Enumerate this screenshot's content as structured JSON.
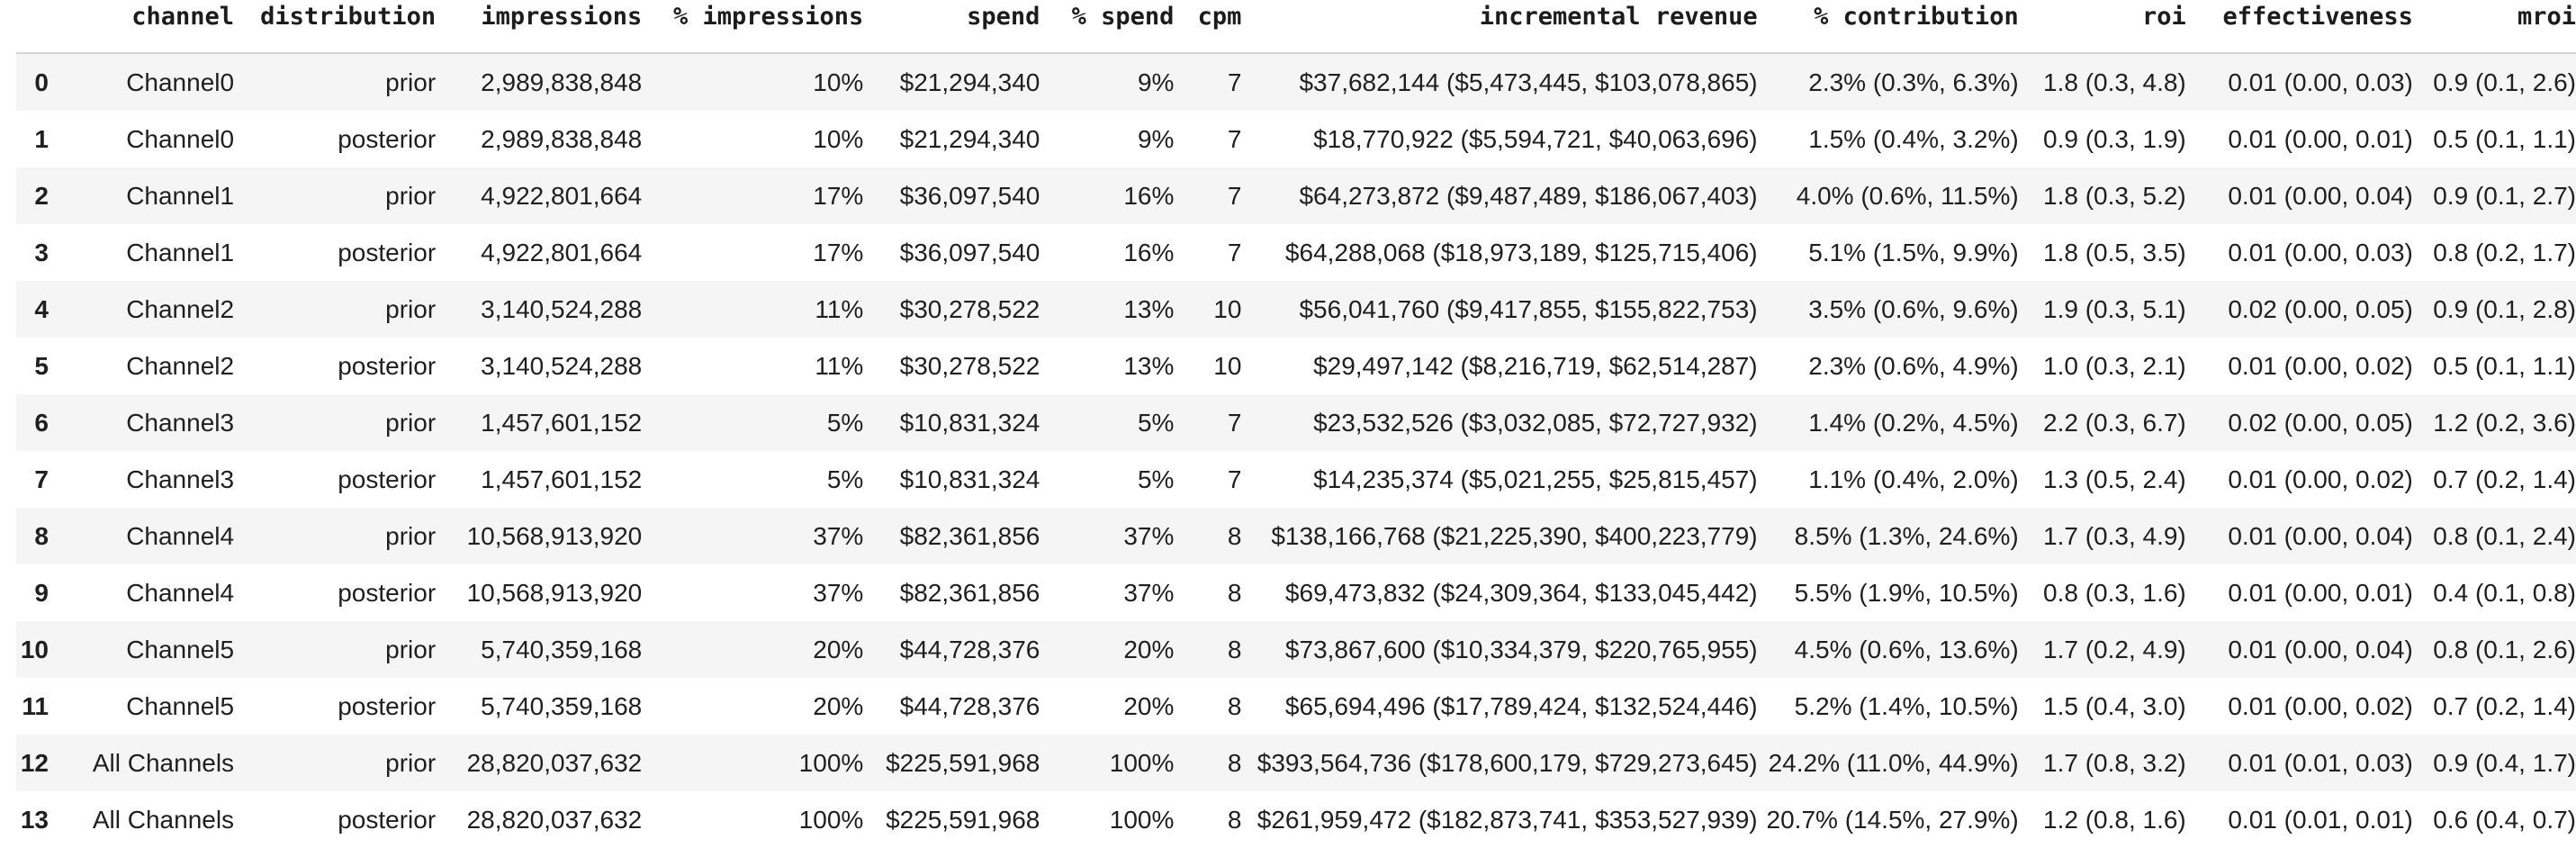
{
  "colors": {
    "row_stripe": "#f5f5f5",
    "header_border": "#d4d4d4",
    "text": "#1f1f1f",
    "background": "#ffffff"
  },
  "chart_data": {
    "type": "table",
    "columns": [
      "",
      "channel",
      "distribution",
      "impressions",
      "% impressions",
      "spend",
      "% spend",
      "cpm",
      "incremental revenue",
      "% contribution",
      "roi",
      "effectiveness",
      "mroi"
    ],
    "rows": [
      [
        "0",
        "Channel0",
        "prior",
        "2,989,838,848",
        "10%",
        "$21,294,340",
        "9%",
        "7",
        "$37,682,144 ($5,473,445, $103,078,865)",
        "2.3% (0.3%, 6.3%)",
        "1.8 (0.3, 4.8)",
        "0.01 (0.00, 0.03)",
        "0.9 (0.1, 2.6)"
      ],
      [
        "1",
        "Channel0",
        "posterior",
        "2,989,838,848",
        "10%",
        "$21,294,340",
        "9%",
        "7",
        "$18,770,922 ($5,594,721, $40,063,696)",
        "1.5% (0.4%, 3.2%)",
        "0.9 (0.3, 1.9)",
        "0.01 (0.00, 0.01)",
        "0.5 (0.1, 1.1)"
      ],
      [
        "2",
        "Channel1",
        "prior",
        "4,922,801,664",
        "17%",
        "$36,097,540",
        "16%",
        "7",
        "$64,273,872 ($9,487,489, $186,067,403)",
        "4.0% (0.6%, 11.5%)",
        "1.8 (0.3, 5.2)",
        "0.01 (0.00, 0.04)",
        "0.9 (0.1, 2.7)"
      ],
      [
        "3",
        "Channel1",
        "posterior",
        "4,922,801,664",
        "17%",
        "$36,097,540",
        "16%",
        "7",
        "$64,288,068 ($18,973,189, $125,715,406)",
        "5.1% (1.5%, 9.9%)",
        "1.8 (0.5, 3.5)",
        "0.01 (0.00, 0.03)",
        "0.8 (0.2, 1.7)"
      ],
      [
        "4",
        "Channel2",
        "prior",
        "3,140,524,288",
        "11%",
        "$30,278,522",
        "13%",
        "10",
        "$56,041,760 ($9,417,855, $155,822,753)",
        "3.5% (0.6%, 9.6%)",
        "1.9 (0.3, 5.1)",
        "0.02 (0.00, 0.05)",
        "0.9 (0.1, 2.8)"
      ],
      [
        "5",
        "Channel2",
        "posterior",
        "3,140,524,288",
        "11%",
        "$30,278,522",
        "13%",
        "10",
        "$29,497,142 ($8,216,719, $62,514,287)",
        "2.3% (0.6%, 4.9%)",
        "1.0 (0.3, 2.1)",
        "0.01 (0.00, 0.02)",
        "0.5 (0.1, 1.1)"
      ],
      [
        "6",
        "Channel3",
        "prior",
        "1,457,601,152",
        "5%",
        "$10,831,324",
        "5%",
        "7",
        "$23,532,526 ($3,032,085, $72,727,932)",
        "1.4% (0.2%, 4.5%)",
        "2.2 (0.3, 6.7)",
        "0.02 (0.00, 0.05)",
        "1.2 (0.2, 3.6)"
      ],
      [
        "7",
        "Channel3",
        "posterior",
        "1,457,601,152",
        "5%",
        "$10,831,324",
        "5%",
        "7",
        "$14,235,374 ($5,021,255, $25,815,457)",
        "1.1% (0.4%, 2.0%)",
        "1.3 (0.5, 2.4)",
        "0.01 (0.00, 0.02)",
        "0.7 (0.2, 1.4)"
      ],
      [
        "8",
        "Channel4",
        "prior",
        "10,568,913,920",
        "37%",
        "$82,361,856",
        "37%",
        "8",
        "$138,166,768 ($21,225,390, $400,223,779)",
        "8.5% (1.3%, 24.6%)",
        "1.7 (0.3, 4.9)",
        "0.01 (0.00, 0.04)",
        "0.8 (0.1, 2.4)"
      ],
      [
        "9",
        "Channel4",
        "posterior",
        "10,568,913,920",
        "37%",
        "$82,361,856",
        "37%",
        "8",
        "$69,473,832 ($24,309,364, $133,045,442)",
        "5.5% (1.9%, 10.5%)",
        "0.8 (0.3, 1.6)",
        "0.01 (0.00, 0.01)",
        "0.4 (0.1, 0.8)"
      ],
      [
        "10",
        "Channel5",
        "prior",
        "5,740,359,168",
        "20%",
        "$44,728,376",
        "20%",
        "8",
        "$73,867,600 ($10,334,379, $220,765,955)",
        "4.5% (0.6%, 13.6%)",
        "1.7 (0.2, 4.9)",
        "0.01 (0.00, 0.04)",
        "0.8 (0.1, 2.6)"
      ],
      [
        "11",
        "Channel5",
        "posterior",
        "5,740,359,168",
        "20%",
        "$44,728,376",
        "20%",
        "8",
        "$65,694,496 ($17,789,424, $132,524,446)",
        "5.2% (1.4%, 10.5%)",
        "1.5 (0.4, 3.0)",
        "0.01 (0.00, 0.02)",
        "0.7 (0.2, 1.4)"
      ],
      [
        "12",
        "All Channels",
        "prior",
        "28,820,037,632",
        "100%",
        "$225,591,968",
        "100%",
        "8",
        "$393,564,736 ($178,600,179, $729,273,645)",
        "24.2% (11.0%, 44.9%)",
        "1.7 (0.8, 3.2)",
        "0.01 (0.01, 0.03)",
        "0.9 (0.4, 1.7)"
      ],
      [
        "13",
        "All Channels",
        "posterior",
        "28,820,037,632",
        "100%",
        "$225,591,968",
        "100%",
        "8",
        "$261,959,472 ($182,873,741, $353,527,939)",
        "20.7% (14.5%, 27.9%)",
        "1.2 (0.8, 1.6)",
        "0.01 (0.01, 0.01)",
        "0.6 (0.4, 0.7)"
      ]
    ]
  }
}
